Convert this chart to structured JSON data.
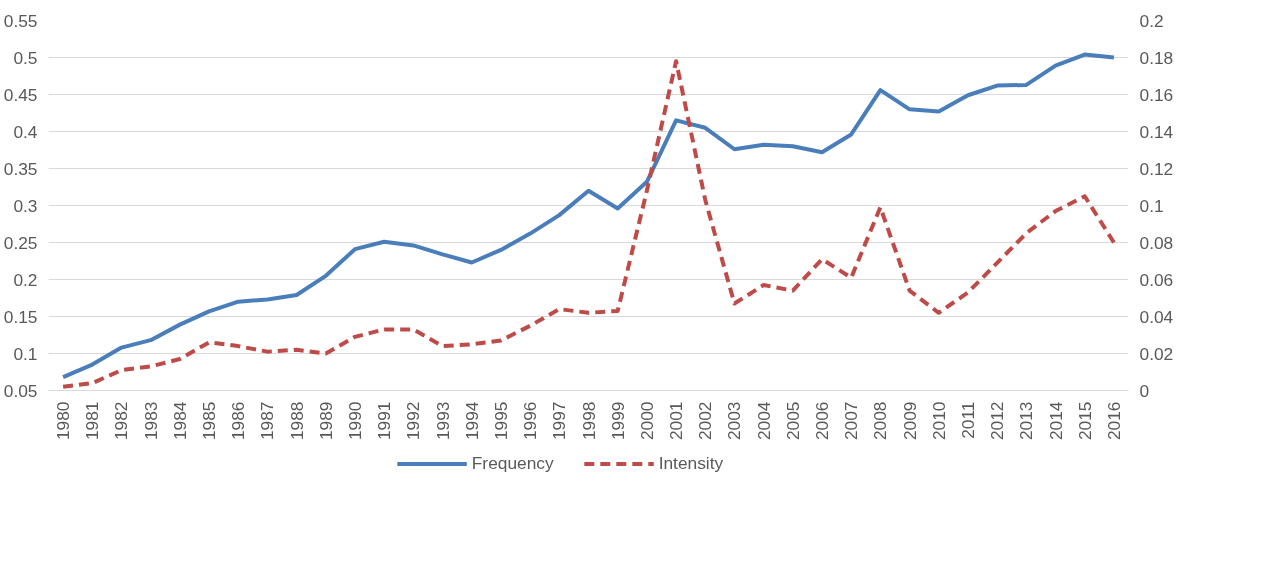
{
  "chart_data": {
    "type": "line",
    "categories": [
      "1980",
      "1981",
      "1982",
      "1983",
      "1984",
      "1985",
      "1986",
      "1987",
      "1988",
      "1989",
      "1990",
      "1991",
      "1992",
      "1993",
      "1994",
      "1995",
      "1996",
      "1997",
      "1998",
      "1999",
      "2000",
      "2001",
      "2002",
      "2003",
      "2004",
      "2005",
      "2006",
      "2007",
      "2008",
      "2009",
      "2010",
      "2011",
      "2012",
      "2013",
      "2014",
      "2015",
      "2016"
    ],
    "series": [
      {
        "name": "Frequency",
        "color": "#4a7ebb",
        "line_style": "solid",
        "values": [
          0.068,
          0.085,
          0.108,
          0.118,
          0.139,
          0.157,
          0.17,
          0.173,
          0.179,
          0.205,
          0.241,
          0.251,
          0.246,
          0.234,
          0.223,
          0.24,
          0.262,
          0.287,
          0.32,
          0.296,
          0.332,
          0.415,
          0.405,
          0.376,
          0.382,
          0.38,
          0.372,
          0.396,
          0.456,
          0.43,
          0.427,
          0.449,
          0.462,
          0.463,
          0.489,
          0.504,
          0.5
        ]
      },
      {
        "name": "Intensity",
        "color": "#be4b48",
        "line_style": "dashed",
        "axis": "y2",
        "values": [
          0.002,
          0.004,
          0.011,
          0.013,
          0.017,
          0.026,
          0.024,
          0.021,
          0.022,
          0.02,
          0.029,
          0.033,
          0.033,
          0.024,
          0.025,
          0.027,
          0.035,
          0.044,
          0.042,
          0.043,
          0.108,
          0.178,
          0.103,
          0.047,
          0.057,
          0.054,
          0.071,
          0.061,
          0.099,
          0.054,
          0.042,
          0.053,
          0.069,
          0.085,
          0.097,
          0.105,
          0.08
        ]
      }
    ],
    "ylim": [
      0.05,
      0.55
    ],
    "yticks": [
      0.05,
      0.1,
      0.15,
      0.2,
      0.25,
      0.3,
      0.35,
      0.4,
      0.45,
      0.5,
      0.55
    ],
    "y2lim": [
      0,
      0.2
    ],
    "y2ticks": [
      0,
      0.02,
      0.04,
      0.06,
      0.08,
      0.1,
      0.12,
      0.14,
      0.16,
      0.18,
      0.2
    ],
    "grid": "y",
    "legend": "bottom",
    "marker": "none"
  }
}
